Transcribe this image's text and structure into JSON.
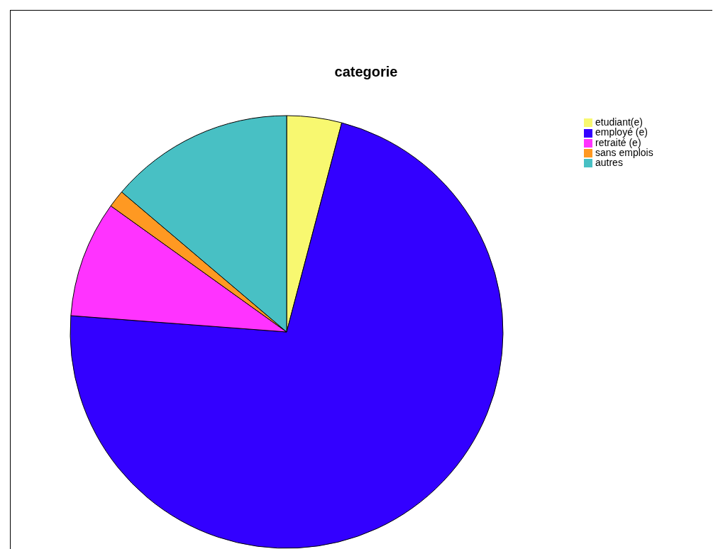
{
  "chart_data": {
    "type": "pie",
    "title": "categorie",
    "categories": [
      "etudiant(e)",
      "employé (e)",
      "retraité (e)",
      "sans emplois",
      "autres"
    ],
    "values": [
      4.1,
      72.1,
      8.7,
      1.3,
      13.8
    ],
    "colors": [
      "#f8f870",
      "#3300ff",
      "#ff33ff",
      "#ff9922",
      "#48c0c4"
    ],
    "legend": "top right"
  }
}
